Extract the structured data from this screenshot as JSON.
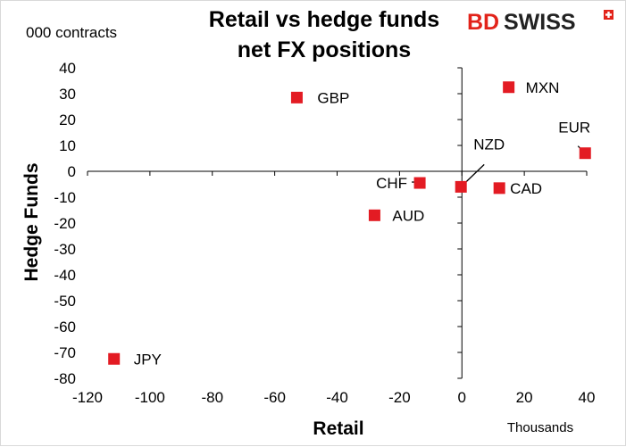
{
  "chart_data": {
    "type": "scatter",
    "title_lines": [
      "Retail vs hedge funds",
      "net FX positions"
    ],
    "units_label": "000 contracts",
    "xlabel": "Retail",
    "ylabel": "Hedge Funds",
    "scale_note": "Thousands",
    "xlim": [
      -120,
      40
    ],
    "ylim": [
      -80,
      40
    ],
    "x_ticks": [
      -120,
      -100,
      -80,
      -60,
      -40,
      -20,
      0,
      20,
      40
    ],
    "y_ticks": [
      40,
      30,
      20,
      10,
      0,
      -10,
      -20,
      -30,
      -40,
      -50,
      -60,
      -70,
      -80
    ],
    "grid": false,
    "marker_color": "#e31b23",
    "points": [
      {
        "label": "GBP",
        "x": -52.9,
        "y": 28.5
      },
      {
        "label": "MXN",
        "x": 15.0,
        "y": 32.5
      },
      {
        "label": "EUR",
        "x": 39.5,
        "y": 7.0
      },
      {
        "label": "NZD",
        "x": -0.3,
        "y": -6.0
      },
      {
        "label": "CHF",
        "x": -13.5,
        "y": -4.5
      },
      {
        "label": "CAD",
        "x": 12.0,
        "y": -6.5
      },
      {
        "label": "AUD",
        "x": -28.0,
        "y": -17.0
      },
      {
        "label": "JPY",
        "x": -111.5,
        "y": -72.5
      }
    ]
  },
  "logo": {
    "part1": "BD",
    "part2": "SWISS"
  }
}
